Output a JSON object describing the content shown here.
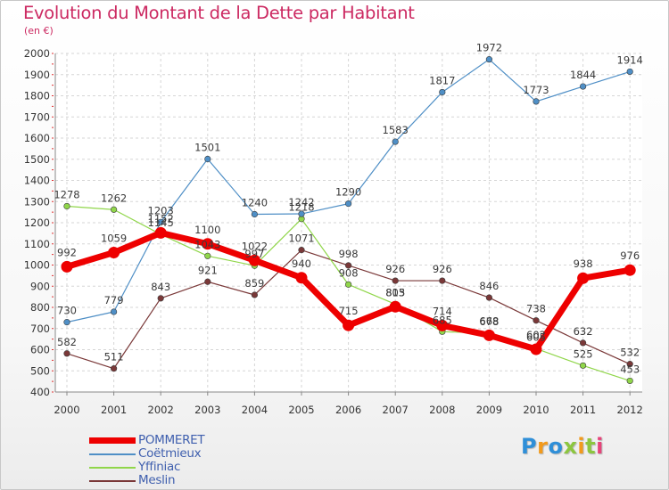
{
  "chart_data": {
    "type": "line",
    "title": "Evolution du Montant de la Dette par Habitant",
    "subtitle": "(en €)",
    "xlabel": "",
    "ylabel": "",
    "categories": [
      "2000",
      "2001",
      "2002",
      "2003",
      "2004",
      "2005",
      "2006",
      "2007",
      "2008",
      "2009",
      "2010",
      "2011",
      "2012"
    ],
    "ylim": [
      400,
      2000
    ],
    "yticks": [
      400,
      500,
      600,
      700,
      800,
      900,
      1000,
      1100,
      1200,
      1300,
      1400,
      1500,
      1600,
      1700,
      1800,
      1900,
      2000
    ],
    "grid": true,
    "legend_position": "bottom-left",
    "series": [
      {
        "name": "POMMERET",
        "color": "#ee0000",
        "values": [
          992,
          1059,
          1152,
          1100,
          1022,
          940,
          715,
          803,
          714,
          668,
          602,
          938,
          976
        ]
      },
      {
        "name": "Coëtmieux",
        "color": "#4f8fc6",
        "values": [
          730,
          779,
          1203,
          1501,
          1240,
          1242,
          1290,
          1583,
          1817,
          1972,
          1773,
          1844,
          1914
        ]
      },
      {
        "name": "Yffiniac",
        "color": "#90d64a",
        "values": [
          1278,
          1262,
          1145,
          1043,
          997,
          1218,
          908,
          815,
          685,
          678,
          605,
          525,
          453
        ]
      },
      {
        "name": "Meslin",
        "color": "#7a3838",
        "values": [
          582,
          511,
          843,
          921,
          859,
          1071,
          998,
          926,
          926,
          846,
          738,
          632,
          532
        ]
      }
    ]
  },
  "logo": {
    "text": "Proxiti",
    "letters": [
      {
        "ch": "P",
        "color": "#2f8fd8"
      },
      {
        "ch": "r",
        "color": "#f29a1c"
      },
      {
        "ch": "o",
        "color": "#2f8fd8"
      },
      {
        "ch": "x",
        "color": "#8cc63f"
      },
      {
        "ch": "i",
        "color": "#f29a1c"
      },
      {
        "ch": "t",
        "color": "#8cc63f"
      },
      {
        "ch": "i",
        "color": "#e6447a"
      }
    ]
  }
}
